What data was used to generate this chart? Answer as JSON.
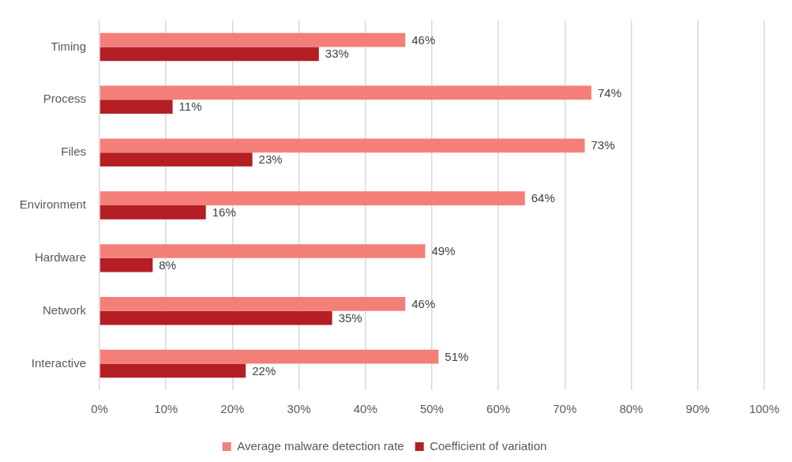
{
  "chart_data": {
    "type": "bar",
    "orientation": "horizontal",
    "categories": [
      "Timing",
      "Process",
      "Files",
      "Environment",
      "Hardware",
      "Network",
      "Interactive"
    ],
    "series": [
      {
        "name": "Average malware detection rate",
        "color": "#f47f79",
        "values": [
          46,
          74,
          73,
          64,
          49,
          46,
          51
        ],
        "value_labels": [
          "46%",
          "74%",
          "73%",
          "64%",
          "49%",
          "46%",
          "51%"
        ]
      },
      {
        "name": "Coefficient of variation",
        "color": "#b41e24",
        "values": [
          33,
          11,
          23,
          16,
          8,
          35,
          22
        ],
        "value_labels": [
          "33%",
          "11%",
          "23%",
          "16%",
          "8%",
          "35%",
          "22%"
        ]
      }
    ],
    "xlim": [
      0,
      100
    ],
    "xticks": [
      {
        "value": 0,
        "label": "0%"
      },
      {
        "value": 10,
        "label": "10%"
      },
      {
        "value": 20,
        "label": "20%"
      },
      {
        "value": 30,
        "label": "30%"
      },
      {
        "value": 40,
        "label": "40%"
      },
      {
        "value": 50,
        "label": "50%"
      },
      {
        "value": 60,
        "label": "60%"
      },
      {
        "value": 70,
        "label": "70%"
      },
      {
        "value": 80,
        "label": "80%"
      },
      {
        "value": 90,
        "label": "90%"
      },
      {
        "value": 100,
        "label": "100%"
      }
    ],
    "grid": "x",
    "legend": "bottom"
  }
}
